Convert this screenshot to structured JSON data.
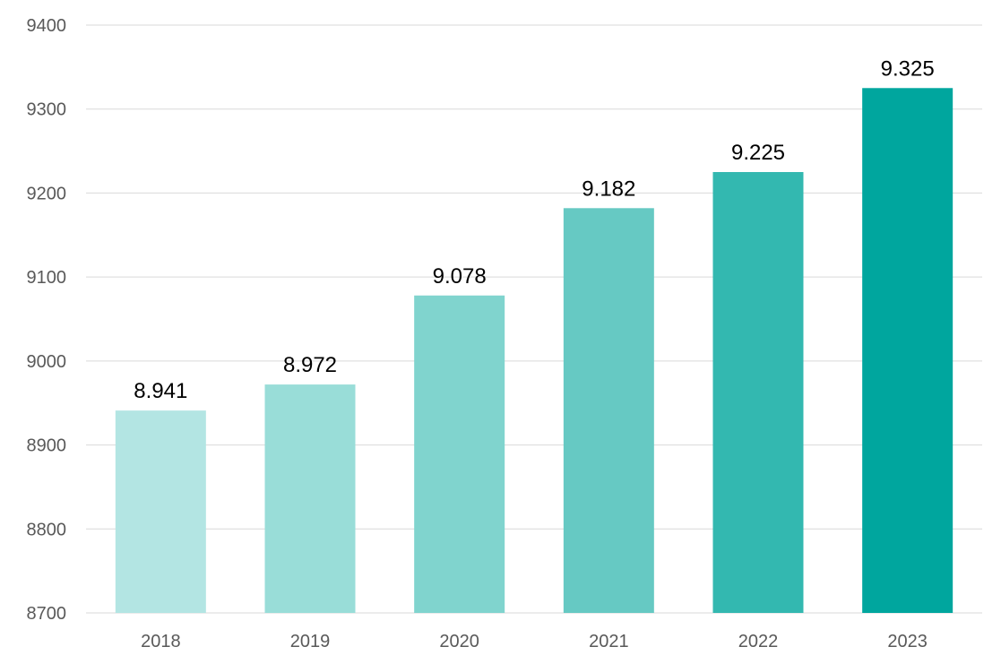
{
  "chart_data": {
    "type": "bar",
    "categories": [
      "2018",
      "2019",
      "2020",
      "2021",
      "2022",
      "2023"
    ],
    "values": [
      8941,
      8972,
      9078,
      9182,
      9225,
      9325
    ],
    "data_labels": [
      "8.941",
      "8.972",
      "9.078",
      "9.182",
      "9.225",
      "9.325"
    ],
    "bar_colors": [
      "#b3e5e3",
      "#99ddd8",
      "#80d4ce",
      "#66c9c3",
      "#33b8b0",
      "#00a69e"
    ],
    "y_ticks": [
      "8700",
      "8800",
      "8900",
      "9000",
      "9100",
      "9200",
      "9300",
      "9400"
    ],
    "ylim": [
      8700,
      9400
    ],
    "title": "",
    "xlabel": "",
    "ylabel": "",
    "grid": true,
    "legend": "none"
  }
}
